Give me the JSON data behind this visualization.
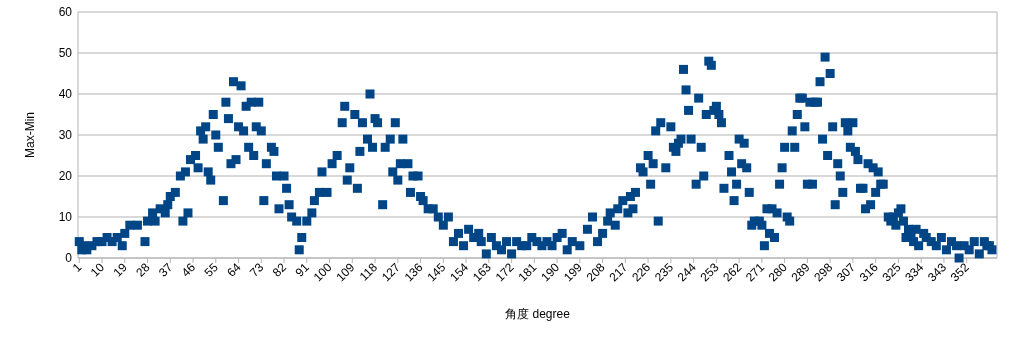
{
  "chart_data": {
    "type": "scatter",
    "xlabel": "角度 degree",
    "ylabel": "Max-Min",
    "marker": "square",
    "grid": "y",
    "x": [
      1,
      2,
      3,
      4,
      6,
      8,
      10,
      12,
      14,
      16,
      18,
      19,
      21,
      24,
      27,
      28,
      30,
      31,
      33,
      35,
      36,
      37,
      39,
      41,
      42,
      43,
      44,
      45,
      47,
      48,
      49,
      50,
      51,
      52,
      53,
      54,
      55,
      56,
      58,
      59,
      60,
      61,
      62,
      63,
      64,
      65,
      66,
      67,
      68,
      69,
      70,
      71,
      72,
      73,
      74,
      75,
      77,
      78,
      79,
      80,
      82,
      83,
      84,
      85,
      87,
      88,
      89,
      91,
      93,
      94,
      96,
      97,
      99,
      101,
      103,
      105,
      106,
      107,
      108,
      110,
      111,
      112,
      113,
      115,
      116,
      117,
      118,
      119,
      121,
      122,
      124,
      125,
      126,
      127,
      128,
      129,
      131,
      132,
      133,
      135,
      136,
      137,
      139,
      141,
      143,
      145,
      147,
      149,
      151,
      153,
      155,
      157,
      159,
      160,
      162,
      164,
      166,
      168,
      170,
      172,
      174,
      176,
      178,
      180,
      182,
      184,
      186,
      188,
      190,
      192,
      194,
      196,
      199,
      202,
      204,
      206,
      208,
      210,
      211,
      213,
      214,
      216,
      218,
      219,
      220,
      221,
      223,
      224,
      226,
      227,
      228,
      229,
      230,
      231,
      233,
      235,
      236,
      237,
      238,
      239,
      240,
      241,
      242,
      243,
      245,
      246,
      247,
      248,
      249,
      250,
      251,
      252,
      253,
      254,
      255,
      256,
      258,
      259,
      260,
      261,
      262,
      263,
      264,
      265,
      266,
      267,
      268,
      270,
      271,
      272,
      273,
      274,
      275,
      276,
      277,
      278,
      279,
      280,
      281,
      282,
      283,
      284,
      285,
      286,
      287,
      288,
      289,
      290,
      291,
      292,
      293,
      294,
      295,
      296,
      297,
      298,
      299,
      300,
      301,
      302,
      303,
      304,
      305,
      306,
      307,
      308,
      309,
      310,
      311,
      312,
      313,
      314,
      315,
      316,
      317,
      318,
      319,
      321,
      322,
      323,
      324,
      325,
      326,
      327,
      328,
      329,
      330,
      331,
      332,
      333,
      335,
      336,
      338,
      340,
      342,
      344,
      346,
      348,
      349,
      351,
      353,
      355,
      357,
      359,
      360,
      361,
      362
    ],
    "values": [
      4,
      2,
      3,
      2,
      3,
      4,
      4,
      5,
      4,
      5,
      3,
      6,
      8,
      8,
      4,
      9,
      11,
      9,
      12,
      11,
      13,
      15,
      16,
      20,
      9,
      21,
      11,
      24,
      25,
      22,
      31,
      29,
      32,
      21,
      19,
      35,
      30,
      27,
      14,
      38,
      34,
      23,
      43,
      24,
      32,
      42,
      31,
      37,
      27,
      38,
      25,
      32,
      38,
      31,
      14,
      23,
      27,
      26,
      20,
      12,
      20,
      17,
      13,
      10,
      9,
      2,
      5,
      9,
      11,
      14,
      16,
      21,
      16,
      23,
      25,
      33,
      37,
      19,
      22,
      35,
      17,
      26,
      33,
      29,
      40,
      27,
      34,
      33,
      13,
      27,
      29,
      21,
      33,
      19,
      23,
      29,
      23,
      16,
      20,
      20,
      15,
      14,
      12,
      12,
      10,
      8,
      10,
      4,
      6,
      3,
      7,
      5,
      6,
      4,
      1,
      5,
      3,
      2,
      4,
      1,
      4,
      3,
      3,
      5,
      4,
      3,
      4,
      3,
      5,
      6,
      2,
      4,
      3,
      7,
      10,
      4,
      6,
      9,
      11,
      8,
      12,
      14,
      11,
      15,
      12,
      16,
      22,
      21,
      25,
      18,
      23,
      31,
      9,
      33,
      22,
      32,
      27,
      26,
      28,
      29,
      46,
      41,
      36,
      29,
      18,
      39,
      27,
      20,
      35,
      48,
      47,
      36,
      37,
      35,
      33,
      17,
      25,
      21,
      14,
      18,
      29,
      23,
      28,
      22,
      16,
      8,
      9,
      9,
      8,
      3,
      12,
      6,
      12,
      5,
      11,
      18,
      22,
      27,
      10,
      9,
      31,
      27,
      35,
      39,
      39,
      32,
      18,
      38,
      18,
      38,
      38,
      43,
      29,
      49,
      25,
      45,
      32,
      13,
      23,
      20,
      16,
      33,
      31,
      27,
      33,
      26,
      24,
      17,
      17,
      12,
      23,
      13,
      22,
      16,
      21,
      18,
      18,
      10,
      9,
      10,
      8,
      11,
      12,
      9,
      5,
      7,
      6,
      4,
      7,
      3,
      6,
      5,
      4,
      3,
      5,
      2,
      4,
      3,
      0,
      3,
      2,
      4,
      1,
      4,
      3,
      3,
      2
    ],
    "color": "#004586",
    "xlim": [
      0.5,
      364
    ],
    "xticks": [
      1,
      10,
      19,
      28,
      37,
      46,
      55,
      64,
      73,
      82,
      91,
      100,
      109,
      118,
      127,
      136,
      145,
      154,
      163,
      172,
      181,
      190,
      199,
      208,
      217,
      226,
      235,
      244,
      253,
      262,
      271,
      280,
      289,
      298,
      307,
      316,
      325,
      334,
      343,
      352
    ],
    "ylim": [
      0,
      60
    ],
    "yticks": [
      0,
      10,
      20,
      30,
      40,
      50,
      60
    ]
  }
}
